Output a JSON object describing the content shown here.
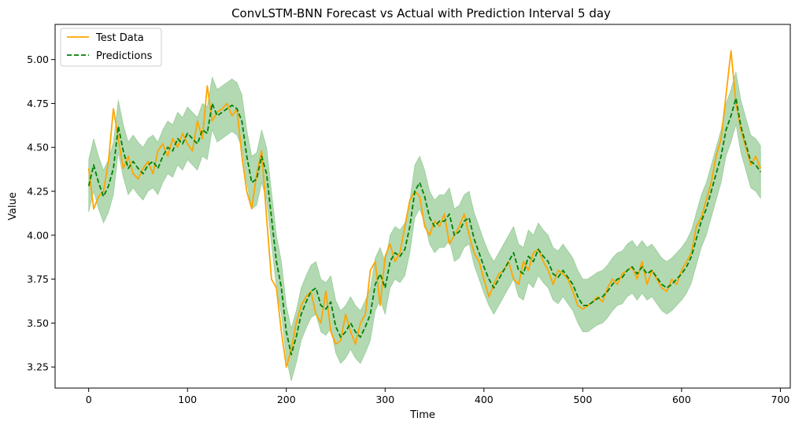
{
  "chart_data": {
    "type": "line",
    "title": "ConvLSTM-BNN Forecast vs Actual with Prediction Interval 5 day",
    "xlabel": "Time",
    "ylabel": "Value",
    "xlim": [
      -34,
      710
    ],
    "ylim": [
      3.13,
      5.2
    ],
    "xticks": [
      0,
      100,
      200,
      300,
      400,
      500,
      600,
      700
    ],
    "yticks": [
      3.25,
      3.5,
      3.75,
      4.0,
      4.25,
      4.5,
      4.75,
      5.0
    ],
    "xtick_labels": [
      "0",
      "100",
      "200",
      "300",
      "400",
      "500",
      "600",
      "700"
    ],
    "ytick_labels": [
      "3.25",
      "3.50",
      "3.75",
      "4.00",
      "4.25",
      "4.50",
      "4.75",
      "5.00"
    ],
    "grid": false,
    "legend_position": "top-left",
    "interval_half_width": 0.15,
    "series": [
      {
        "name": "Test Data",
        "color": "#FFA500",
        "style": "solid",
        "x": [
          0,
          5,
          10,
          15,
          20,
          25,
          30,
          35,
          40,
          45,
          50,
          55,
          60,
          65,
          70,
          75,
          80,
          85,
          90,
          95,
          100,
          105,
          110,
          115,
          120,
          125,
          130,
          135,
          140,
          145,
          150,
          155,
          160,
          165,
          170,
          175,
          180,
          185,
          190,
          195,
          200,
          205,
          210,
          215,
          220,
          225,
          230,
          235,
          240,
          245,
          250,
          255,
          260,
          265,
          270,
          275,
          280,
          285,
          290,
          295,
          300,
          305,
          310,
          315,
          320,
          325,
          330,
          335,
          340,
          345,
          350,
          355,
          360,
          365,
          370,
          375,
          380,
          385,
          390,
          395,
          400,
          405,
          410,
          415,
          420,
          425,
          430,
          435,
          440,
          445,
          450,
          455,
          460,
          465,
          470,
          475,
          480,
          485,
          490,
          495,
          500,
          505,
          510,
          515,
          520,
          525,
          530,
          535,
          540,
          545,
          550,
          555,
          560,
          565,
          570,
          575,
          580,
          585,
          590,
          595,
          600,
          605,
          610,
          615,
          620,
          625,
          630,
          635,
          640,
          645,
          650,
          655,
          660,
          665,
          670,
          675,
          680
        ],
        "values": [
          4.38,
          4.15,
          4.22,
          4.25,
          4.42,
          4.72,
          4.55,
          4.38,
          4.45,
          4.35,
          4.32,
          4.38,
          4.42,
          4.35,
          4.48,
          4.52,
          4.45,
          4.55,
          4.5,
          4.58,
          4.52,
          4.48,
          4.65,
          4.55,
          4.85,
          4.65,
          4.7,
          4.72,
          4.75,
          4.68,
          4.72,
          4.45,
          4.25,
          4.15,
          4.35,
          4.48,
          4.1,
          3.75,
          3.7,
          3.45,
          3.25,
          3.35,
          3.5,
          3.6,
          3.65,
          3.68,
          3.55,
          3.5,
          3.68,
          3.45,
          3.38,
          3.4,
          3.55,
          3.45,
          3.38,
          3.5,
          3.55,
          3.8,
          3.85,
          3.6,
          3.88,
          3.95,
          3.85,
          3.9,
          4.05,
          4.2,
          4.25,
          4.22,
          4.05,
          4.0,
          4.08,
          4.05,
          4.12,
          3.95,
          4.0,
          4.05,
          4.12,
          4.0,
          3.9,
          3.85,
          3.75,
          3.65,
          3.72,
          3.78,
          3.8,
          3.85,
          3.75,
          3.72,
          3.85,
          3.8,
          3.9,
          3.92,
          3.85,
          3.8,
          3.72,
          3.8,
          3.78,
          3.75,
          3.68,
          3.6,
          3.58,
          3.6,
          3.62,
          3.65,
          3.62,
          3.7,
          3.75,
          3.72,
          3.78,
          3.8,
          3.82,
          3.75,
          3.85,
          3.72,
          3.8,
          3.75,
          3.7,
          3.68,
          3.75,
          3.72,
          3.8,
          3.85,
          3.9,
          4.05,
          4.1,
          4.2,
          4.3,
          4.45,
          4.55,
          4.8,
          5.05,
          4.75,
          4.6,
          4.5,
          4.4,
          4.45,
          4.38
        ]
      },
      {
        "name": "Predictions",
        "color": "#008000",
        "style": "dashed",
        "x": [
          0,
          5,
          10,
          15,
          20,
          25,
          30,
          35,
          40,
          45,
          50,
          55,
          60,
          65,
          70,
          75,
          80,
          85,
          90,
          95,
          100,
          105,
          110,
          115,
          120,
          125,
          130,
          135,
          140,
          145,
          150,
          155,
          160,
          165,
          170,
          175,
          180,
          185,
          190,
          195,
          200,
          205,
          210,
          215,
          220,
          225,
          230,
          235,
          240,
          245,
          250,
          255,
          260,
          265,
          270,
          275,
          280,
          285,
          290,
          295,
          300,
          305,
          310,
          315,
          320,
          325,
          330,
          335,
          340,
          345,
          350,
          355,
          360,
          365,
          370,
          375,
          380,
          385,
          390,
          395,
          400,
          405,
          410,
          415,
          420,
          425,
          430,
          435,
          440,
          445,
          450,
          455,
          460,
          465,
          470,
          475,
          480,
          485,
          490,
          495,
          500,
          505,
          510,
          515,
          520,
          525,
          530,
          535,
          540,
          545,
          550,
          555,
          560,
          565,
          570,
          575,
          580,
          585,
          590,
          595,
          600,
          605,
          610,
          615,
          620,
          625,
          630,
          635,
          640,
          645,
          650,
          655,
          660,
          665,
          670,
          675,
          680
        ],
        "values": [
          4.28,
          4.4,
          4.3,
          4.22,
          4.28,
          4.38,
          4.62,
          4.48,
          4.38,
          4.42,
          4.38,
          4.35,
          4.4,
          4.42,
          4.38,
          4.45,
          4.5,
          4.48,
          4.55,
          4.52,
          4.58,
          4.55,
          4.52,
          4.6,
          4.58,
          4.75,
          4.68,
          4.7,
          4.72,
          4.74,
          4.72,
          4.65,
          4.45,
          4.3,
          4.32,
          4.45,
          4.35,
          4.1,
          3.85,
          3.7,
          3.45,
          3.32,
          3.42,
          3.55,
          3.62,
          3.68,
          3.7,
          3.6,
          3.58,
          3.62,
          3.48,
          3.42,
          3.45,
          3.5,
          3.45,
          3.42,
          3.48,
          3.55,
          3.72,
          3.78,
          3.7,
          3.85,
          3.9,
          3.88,
          3.92,
          4.05,
          4.25,
          4.3,
          4.22,
          4.1,
          4.05,
          4.08,
          4.08,
          4.12,
          4.0,
          4.02,
          4.08,
          4.1,
          3.98,
          3.9,
          3.82,
          3.75,
          3.7,
          3.75,
          3.8,
          3.85,
          3.9,
          3.8,
          3.78,
          3.88,
          3.85,
          3.92,
          3.88,
          3.85,
          3.78,
          3.76,
          3.8,
          3.76,
          3.72,
          3.65,
          3.6,
          3.6,
          3.62,
          3.64,
          3.65,
          3.68,
          3.72,
          3.75,
          3.76,
          3.8,
          3.82,
          3.78,
          3.82,
          3.78,
          3.8,
          3.76,
          3.72,
          3.7,
          3.72,
          3.75,
          3.78,
          3.82,
          3.88,
          3.98,
          4.08,
          4.15,
          4.25,
          4.35,
          4.45,
          4.6,
          4.68,
          4.78,
          4.62,
          4.52,
          4.42,
          4.4,
          4.36
        ]
      }
    ]
  }
}
